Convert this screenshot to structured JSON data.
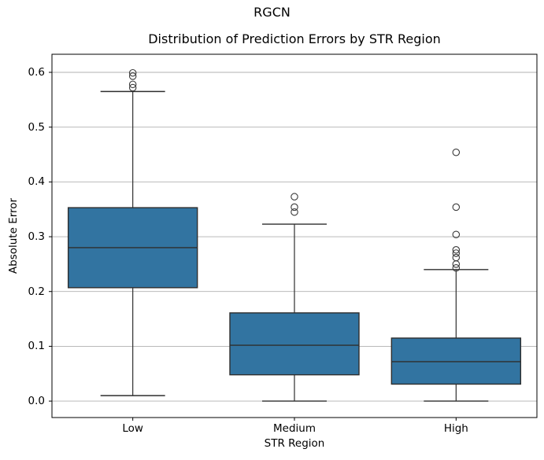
{
  "figure": {
    "suptitle": "RGCN"
  },
  "chart_data": {
    "type": "boxplot",
    "title": "Distribution of Prediction Errors by STR Region",
    "xlabel": "STR Region",
    "ylabel": "Absolute Error",
    "categories": [
      "Low",
      "Medium",
      "High"
    ],
    "ylim": [
      -0.03,
      0.633
    ],
    "yticks": [
      0.0,
      0.1,
      0.2,
      0.3,
      0.4,
      0.5,
      0.6
    ],
    "ytick_labels": [
      "0.0",
      "0.1",
      "0.2",
      "0.3",
      "0.4",
      "0.5",
      "0.6"
    ],
    "grid": {
      "axis": "y",
      "on": true
    },
    "legend": "none",
    "colors": {
      "box_fill": "#3274a1",
      "box_edge": "#2e2e2e",
      "whisker": "#2e2e2e",
      "median": "#2e2e2e",
      "flier_edge": "#383838",
      "grid": "#b0b0b0",
      "spine": "#000000",
      "background": "#ffffff"
    },
    "boxes": [
      {
        "label": "Low",
        "whisker_low": 0.01,
        "q1": 0.207,
        "median": 0.28,
        "q3": 0.353,
        "whisker_high": 0.565,
        "outliers": [
          0.572,
          0.578,
          0.593,
          0.599
        ]
      },
      {
        "label": "Medium",
        "whisker_low": 0.0,
        "q1": 0.048,
        "median": 0.102,
        "q3": 0.161,
        "whisker_high": 0.323,
        "outliers": [
          0.345,
          0.354,
          0.373
        ]
      },
      {
        "label": "High",
        "whisker_low": 0.0,
        "q1": 0.031,
        "median": 0.072,
        "q3": 0.115,
        "whisker_high": 0.24,
        "outliers": [
          0.243,
          0.25,
          0.262,
          0.27,
          0.276,
          0.304,
          0.354,
          0.454
        ]
      }
    ]
  }
}
